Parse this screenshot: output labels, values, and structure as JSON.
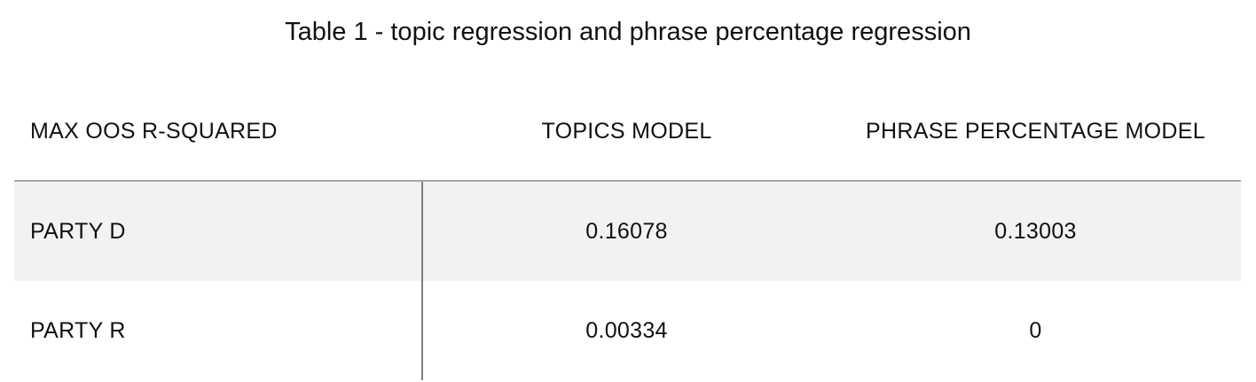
{
  "caption": "Table 1 - topic regression and phrase percentage regression",
  "table": {
    "headers": [
      "MAX OOS R-SQUARED",
      "TOPICS MODEL",
      "PHRASE PERCENTAGE MODEL"
    ],
    "rows": [
      [
        "PARTY D",
        "0.16078",
        "0.13003"
      ],
      [
        "PARTY R",
        "0.00334",
        "0"
      ]
    ]
  }
}
